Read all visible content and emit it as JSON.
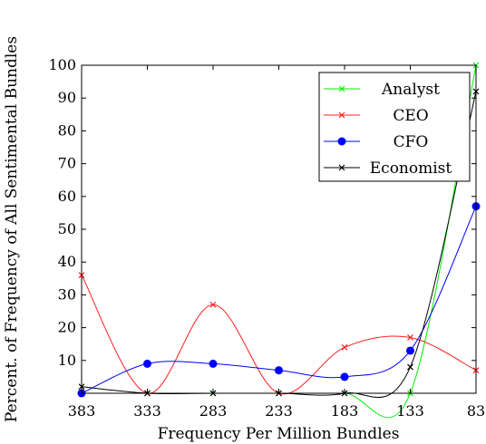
{
  "chart_data": {
    "type": "line",
    "title": "",
    "xlabel": "Frequency Per Million Bundles",
    "ylabel": "Percent. of Frequency of All Sentimental Bundles",
    "x": [
      383,
      333,
      283,
      233,
      183,
      133,
      83
    ],
    "x_tick_labels": [
      "383",
      "333",
      "283",
      "233",
      "183",
      "133",
      "83"
    ],
    "x_reversed": true,
    "xlim": [
      383,
      83
    ],
    "ylim": [
      0,
      100
    ],
    "y_ticks": [
      10,
      20,
      30,
      40,
      50,
      60,
      70,
      80,
      90,
      100
    ],
    "y_tick_labels": [
      "10",
      "20",
      "30",
      "40",
      "50",
      "60",
      "70",
      "80",
      "90",
      "100"
    ],
    "grid": false,
    "smooth": true,
    "legend_position": "top-right",
    "series": [
      {
        "name": "Analyst",
        "color": "#00ee00",
        "marker": "x",
        "values": [
          0,
          0,
          0,
          0,
          0,
          0,
          100
        ]
      },
      {
        "name": "CEO",
        "color": "#ff2020",
        "marker": "x",
        "values": [
          36,
          0,
          27,
          0,
          14,
          17,
          7
        ]
      },
      {
        "name": "CFO",
        "color": "#0000ff",
        "marker": "circle",
        "values": [
          0,
          9,
          9,
          7,
          5,
          13,
          57
        ]
      },
      {
        "name": "Economist",
        "color": "#000000",
        "marker": "x",
        "values": [
          2,
          0,
          0,
          0,
          0,
          8,
          92
        ]
      }
    ]
  }
}
